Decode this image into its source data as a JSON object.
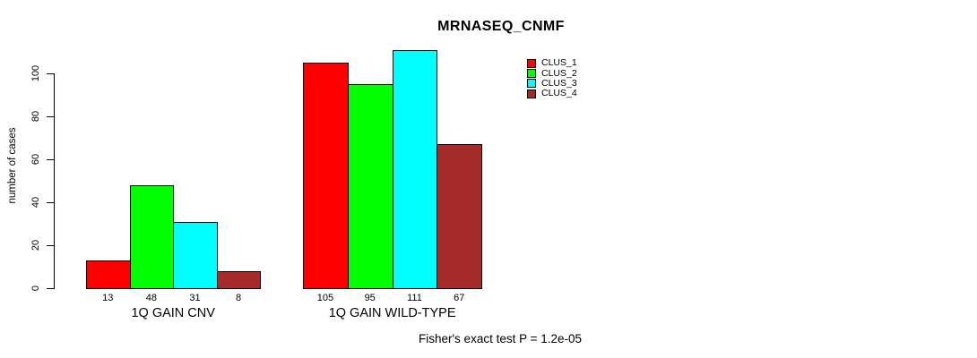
{
  "chart_data": {
    "type": "bar",
    "title": "MRNASEQ_CNMF",
    "ylabel": "number of cases",
    "xlabel": "",
    "yticks": [
      0,
      20,
      40,
      60,
      80,
      100
    ],
    "ylim": [
      0,
      111
    ],
    "grid": false,
    "legend_position": "top-right",
    "categories": [
      "1Q GAIN CNV",
      "1Q GAIN WILD-TYPE"
    ],
    "series": [
      {
        "name": "CLUS_1",
        "color": "#ff0000",
        "values": [
          13,
          105
        ]
      },
      {
        "name": "CLUS_2",
        "color": "#00ff00",
        "values": [
          48,
          95
        ]
      },
      {
        "name": "CLUS_3",
        "color": "#00ffff",
        "values": [
          31,
          111
        ]
      },
      {
        "name": "CLUS_4",
        "color": "#a52a2a",
        "values": [
          8,
          67
        ]
      }
    ],
    "groups": [
      {
        "label": "1Q GAIN CNV",
        "values": [
          13,
          48,
          31,
          8
        ],
        "value_labels": [
          "13",
          "48",
          "31",
          "8"
        ]
      },
      {
        "label": "1Q GAIN WILD-TYPE",
        "values": [
          105,
          95,
          111,
          67
        ],
        "value_labels": [
          "105",
          "95",
          "111",
          "67"
        ]
      }
    ],
    "annotation": "Fisher's exact test P = 1.2e-05"
  },
  "legend": {
    "items": [
      {
        "label": "CLUS_1",
        "color": "#ff0000"
      },
      {
        "label": "CLUS_2",
        "color": "#00ff00"
      },
      {
        "label": "CLUS_3",
        "color": "#00ffff"
      },
      {
        "label": "CLUS_4",
        "color": "#a52a2a"
      }
    ]
  },
  "colors": {
    "axis": "#000000",
    "text": "#000000",
    "background": "#ffffff"
  }
}
